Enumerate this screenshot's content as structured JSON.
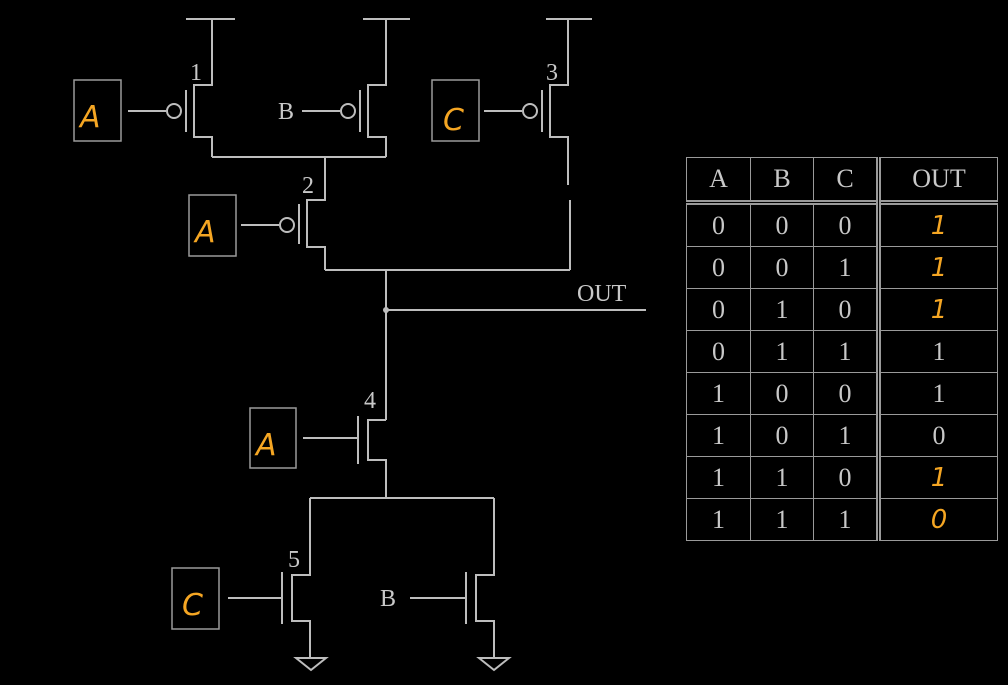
{
  "inputs": {
    "t1_gate": "A",
    "t1_b_gate": "B",
    "t3_gate": "C",
    "t2_gate": "A",
    "t4_gate": "A",
    "t5_gate": "C",
    "t6_gate": "B"
  },
  "transistor_numbers": [
    "1",
    "2",
    "3",
    "4",
    "5"
  ],
  "output_label": "OUT",
  "truth_table": {
    "headers": [
      "A",
      "B",
      "C",
      "OUT"
    ],
    "rows": [
      {
        "a": "0",
        "b": "0",
        "c": "0",
        "out": "1"
      },
      {
        "a": "0",
        "b": "0",
        "c": "1",
        "out": "1"
      },
      {
        "a": "0",
        "b": "1",
        "c": "0",
        "out": "1"
      },
      {
        "a": "0",
        "b": "1",
        "c": "1",
        "out": "1"
      },
      {
        "a": "1",
        "b": "0",
        "c": "0",
        "out": "1"
      },
      {
        "a": "1",
        "b": "0",
        "c": "1",
        "out": "0"
      },
      {
        "a": "1",
        "b": "1",
        "c": "0",
        "out": "1"
      },
      {
        "a": "1",
        "b": "1",
        "c": "1",
        "out": "0"
      }
    ]
  },
  "colors": {
    "wire": "#bdbdbd",
    "handwriting": "#f5a623",
    "background": "#000000"
  }
}
